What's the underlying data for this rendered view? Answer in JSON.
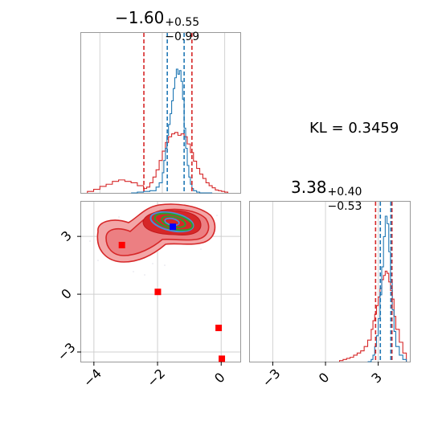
{
  "chart_data": {
    "type": "corner",
    "panels": [
      {
        "id": "marginal-x",
        "type": "histogram",
        "title": {
          "main": "−1.60",
          "upper": "+0.55",
          "lower": "−0.99"
        },
        "xlim": [
          -4.6,
          0.5
        ],
        "series": [
          {
            "name": "",
            "color": "#1f77b4",
            "edges": [
              -3.0,
              -2.8,
              -2.6,
              -2.4,
              -2.2,
              -2.1,
              -2.0,
              -1.95,
              -1.9,
              -1.85,
              -1.8,
              -1.75,
              -1.7,
              -1.65,
              -1.6,
              -1.55,
              -1.5,
              -1.45,
              -1.4,
              -1.35,
              -1.3,
              -1.25,
              -1.2,
              -1.15,
              -1.1,
              -1.05,
              -1.0,
              -0.9,
              -0.8,
              -0.6,
              -0.4
            ],
            "counts": [
              0,
              1,
              2,
              3,
              8,
              14,
              28,
              45,
              62,
              80,
              95,
              110,
              128,
              145,
              160,
              172,
              165,
              170,
              155,
              130,
              90,
              62,
              38,
              22,
              12,
              6,
              3,
              1,
              0,
              0
            ]
          },
          {
            "name": "",
            "color": "#d62728",
            "edges": [
              -4.4,
              -4.2,
              -4.0,
              -3.8,
              -3.6,
              -3.4,
              -3.2,
              -3.0,
              -2.8,
              -2.6,
              -2.5,
              -2.4,
              -2.3,
              -2.2,
              -2.1,
              -2.0,
              -1.9,
              -1.8,
              -1.7,
              -1.6,
              -1.5,
              -1.4,
              -1.3,
              -1.2,
              -1.1,
              -1.0,
              -0.9,
              -0.8,
              -0.7,
              -0.6,
              -0.5,
              -0.4,
              -0.3,
              -0.2,
              -0.1,
              0.0,
              0.1
            ],
            "counts": [
              2,
              5,
              9,
              12,
              16,
              18,
              16,
              14,
              10,
              6,
              8,
              14,
              22,
              32,
              45,
              58,
              70,
              78,
              82,
              84,
              80,
              82,
              78,
              68,
              56,
              44,
              34,
              26,
              20,
              14,
              10,
              7,
              4,
              3,
              2,
              1
            ]
          }
        ],
        "vlines": [
          {
            "x": -2.59,
            "color": "#d62728"
          },
          {
            "x": -1.05,
            "color": "#d62728"
          },
          {
            "x": -1.84,
            "color": "#1f77b4"
          },
          {
            "x": -1.3,
            "color": "#1f77b4"
          }
        ]
      },
      {
        "id": "joint",
        "type": "contour",
        "xlim": [
          -4.4,
          0.6
        ],
        "ylim": [
          -3.5,
          4.8
        ],
        "xticks": [
          "−4",
          "−2",
          "0"
        ],
        "xtick_values": [
          -4,
          -2,
          0
        ],
        "yticks": [
          "−3",
          "0",
          "3"
        ],
        "ytick_values": [
          -3,
          0,
          3
        ],
        "red_points": [
          {
            "x": -3.12,
            "y": 2.55
          },
          {
            "x": -1.99,
            "y": 0.12
          },
          {
            "x": -0.08,
            "y": -1.75
          },
          {
            "x": 0.02,
            "y": -3.35
          }
        ],
        "blue_point": {
          "x": -1.52,
          "y": 3.5
        }
      },
      {
        "id": "marginal-y",
        "type": "histogram",
        "title": {
          "main": "3.38",
          "upper": "+0.40",
          "lower": "−0.53"
        },
        "xlim": [
          -4.3,
          4.8
        ],
        "xticks": [
          "−3",
          "0",
          "3"
        ],
        "xtick_values": [
          -3,
          0,
          3
        ],
        "series": [
          {
            "name": "",
            "color": "#1f77b4",
            "edges": [
              2.4,
              2.6,
              2.7,
              2.8,
              2.9,
              3.0,
              3.1,
              3.2,
              3.3,
              3.4,
              3.5,
              3.6,
              3.7,
              3.8,
              3.9,
              4.0,
              4.2,
              4.4,
              4.6
            ],
            "counts": [
              0,
              2,
              6,
              14,
              24,
              40,
              62,
              88,
              116,
              135,
              128,
              102,
              76,
              48,
              28,
              14,
              6,
              2
            ]
          },
          {
            "name": "",
            "color": "#d62728",
            "edges": [
              0.8,
              1.0,
              1.2,
              1.4,
              1.6,
              1.8,
              2.0,
              2.2,
              2.4,
              2.6,
              2.7,
              2.8,
              2.9,
              3.0,
              3.1,
              3.2,
              3.3,
              3.4,
              3.5,
              3.6,
              3.7,
              3.8,
              3.9,
              4.0,
              4.2,
              4.4,
              4.6
            ],
            "counts": [
              1,
              2,
              3,
              4,
              6,
              8,
              10,
              14,
              20,
              30,
              38,
              44,
              52,
              60,
              68,
              76,
              80,
              84,
              82,
              74,
              66,
              58,
              42,
              30,
              18,
              8
            ]
          }
        ],
        "vlines": [
          {
            "x": 2.85,
            "color": "#d62728"
          },
          {
            "x": 3.78,
            "color": "#d62728"
          },
          {
            "x": 3.12,
            "color": "#1f77b4"
          },
          {
            "x": 3.72,
            "color": "#1f77b4"
          }
        ]
      }
    ],
    "annotation": "KL = 0.3459"
  }
}
